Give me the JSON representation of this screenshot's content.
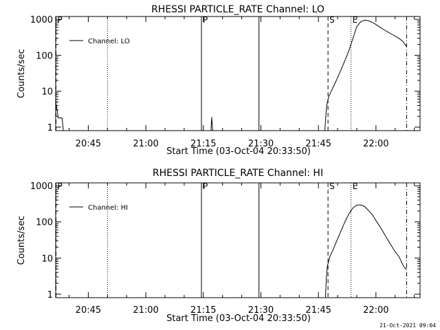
{
  "footer_timestamp": "21-Oct-2021 09:04",
  "chart_data": [
    {
      "type": "line",
      "title": "RHESSI PARTICLE_RATE Channel: LO",
      "xlabel": "Start Time (03-Oct-04 20:33:50)",
      "ylabel": "Counts/sec",
      "yscale": "log",
      "xlim": [
        "20:36:30",
        "22:11:30"
      ],
      "ylim": [
        0.8,
        1200
      ],
      "xticks": [
        "20:45",
        "21:00",
        "21:15",
        "21:30",
        "21:45",
        "22:00"
      ],
      "yticks": [
        "1",
        "10",
        "100",
        "1000"
      ],
      "legend": {
        "entries": [
          "Channel: LO"
        ],
        "position": "top-left"
      },
      "markers": [
        {
          "label": "P",
          "time": "20:36:35",
          "style": "dashed"
        },
        {
          "label": "P",
          "time": "21:14:30",
          "style": "solid"
        },
        {
          "label": "",
          "time": "20:50:00",
          "style": "dotted"
        },
        {
          "label": "",
          "time": "21:29:30",
          "style": "solid"
        },
        {
          "label": "S",
          "time": "21:47:30",
          "style": "dashed"
        },
        {
          "label": "E",
          "time": "21:53:30",
          "style": "dotted"
        },
        {
          "label": "",
          "time": "22:08:00",
          "style": "dashdot"
        }
      ],
      "series": [
        {
          "name": "Channel: LO",
          "segments": [
            {
              "x": [
                "20:36:30",
                "20:36:50",
                "20:37:10",
                "20:37:40",
                "20:38:10",
                "20:38:30"
              ],
              "y": [
                5,
                3.2,
                1.8,
                1.8,
                1.8,
                0.8
              ]
            },
            {
              "x": [
                "21:17:00",
                "21:17:10",
                "21:17:25"
              ],
              "y": [
                0.8,
                1.9,
                0.8
              ]
            },
            {
              "x": [
                "21:46:40",
                "21:46:55",
                "21:47:10",
                "21:47:40",
                "21:48:20",
                "21:49:00",
                "21:50:00",
                "21:51:00",
                "21:52:00",
                "21:53:00",
                "21:54:00",
                "21:55:00",
                "21:56:00",
                "21:57:00",
                "21:58:00",
                "21:59:00",
                "22:00:00",
                "22:01:00",
                "22:02:00",
                "22:03:00",
                "22:04:00",
                "22:05:00",
                "22:06:00",
                "22:07:00",
                "22:08:00"
              ],
              "y": [
                0.8,
                2,
                4,
                7,
                10,
                14,
                24,
                42,
                75,
                140,
                300,
                620,
                850,
                950,
                920,
                830,
                720,
                610,
                520,
                450,
                390,
                340,
                295,
                245,
                175
              ]
            }
          ]
        }
      ]
    },
    {
      "type": "line",
      "title": "RHESSI PARTICLE_RATE Channel: HI",
      "xlabel": "Start Time (03-Oct-04 20:33:50)",
      "ylabel": "Counts/sec",
      "yscale": "log",
      "xlim": [
        "20:36:30",
        "22:11:30"
      ],
      "ylim": [
        0.8,
        1200
      ],
      "xticks": [
        "20:45",
        "21:00",
        "21:15",
        "21:30",
        "21:45",
        "22:00"
      ],
      "yticks": [
        "1",
        "10",
        "100",
        "1000"
      ],
      "legend": {
        "entries": [
          "Channel: HI"
        ],
        "position": "top-left"
      },
      "markers": [
        {
          "label": "P",
          "time": "20:36:35",
          "style": "dashed"
        },
        {
          "label": "P",
          "time": "21:14:30",
          "style": "solid"
        },
        {
          "label": "",
          "time": "20:50:00",
          "style": "dotted"
        },
        {
          "label": "",
          "time": "21:29:30",
          "style": "solid"
        },
        {
          "label": "S",
          "time": "21:47:30",
          "style": "dashed"
        },
        {
          "label": "E",
          "time": "21:53:30",
          "style": "dotted"
        },
        {
          "label": "",
          "time": "22:08:00",
          "style": "dashdot"
        }
      ],
      "series": [
        {
          "name": "Channel: HI",
          "segments": [
            {
              "x": [
                "21:46:50",
                "21:47:05",
                "21:47:20",
                "21:48:00",
                "21:49:00",
                "21:50:00",
                "21:51:00",
                "21:52:00",
                "21:53:00",
                "21:54:00",
                "21:55:00",
                "21:56:00",
                "21:57:00",
                "21:58:00",
                "21:59:00",
                "22:00:00",
                "22:01:00",
                "22:02:00",
                "22:03:00",
                "22:04:00",
                "22:05:00",
                "22:06:00",
                "22:07:00",
                "22:07:40",
                "22:08:00"
              ],
              "y": [
                0.8,
                3,
                6,
                11,
                19,
                34,
                60,
                105,
                170,
                245,
                290,
                295,
                270,
                210,
                160,
                110,
                75,
                50,
                33,
                22,
                15,
                11,
                6.5,
                5,
                5.5
              ]
            }
          ]
        }
      ]
    }
  ]
}
